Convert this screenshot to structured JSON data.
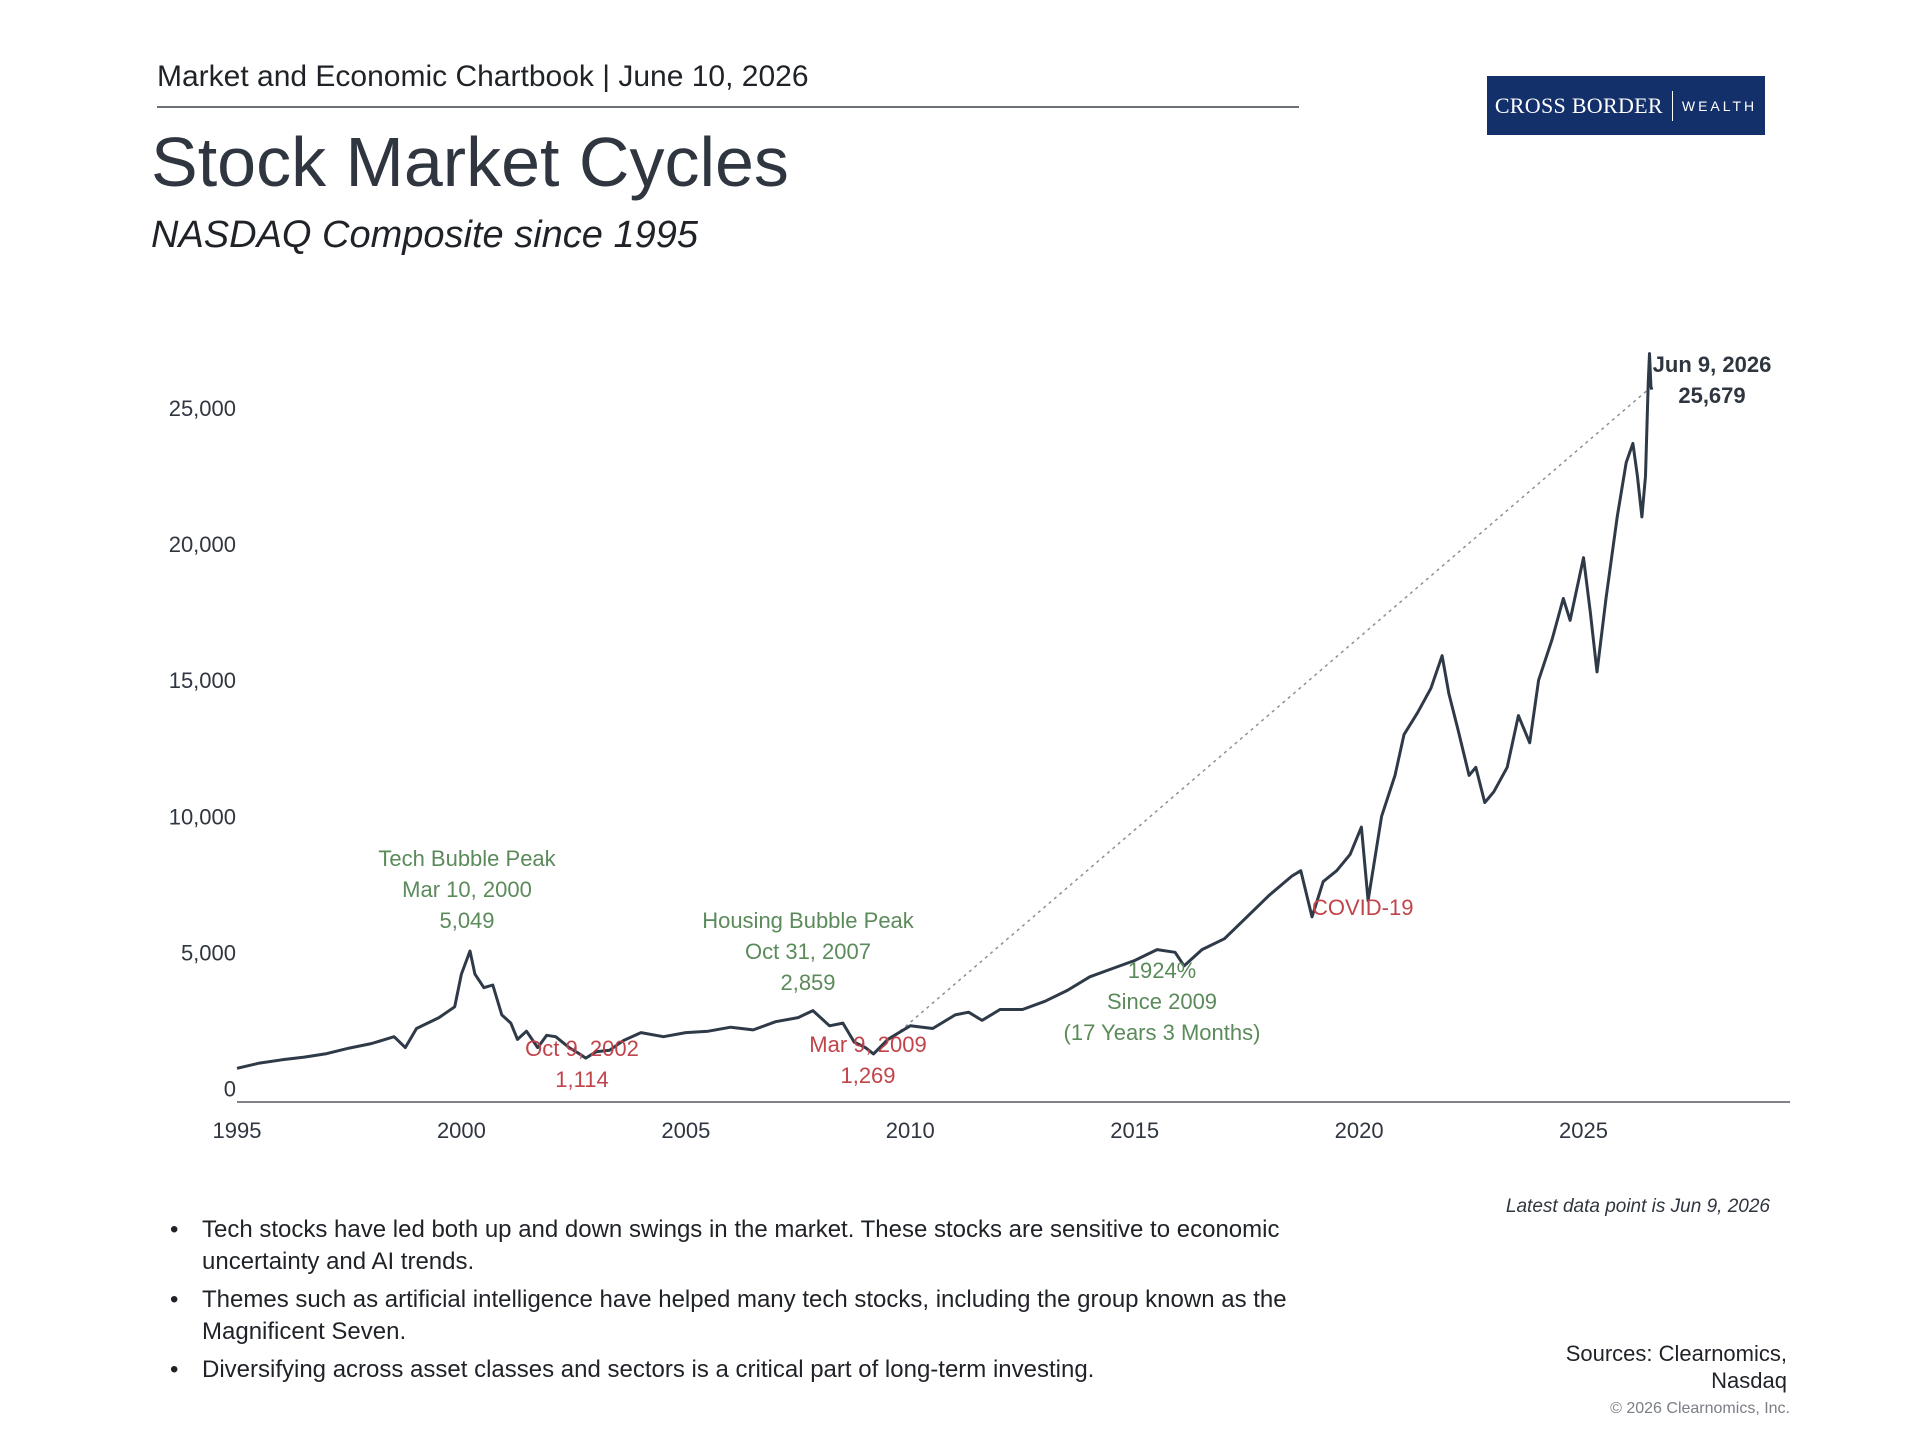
{
  "header": {
    "chartbook_label": "Market and Economic Chartbook | June 10, 2026",
    "logo_main": "CROSS BORDER",
    "logo_sub": "WEALTH"
  },
  "title": "Stock Market Cycles",
  "subtitle": "NASDAQ Composite since 1995",
  "colors": {
    "line": "#2f3a48",
    "peak_annotation": "#5b8a5b",
    "trough_annotation": "#c0444a",
    "axis_text": "#2f3640",
    "logo_background": "#13306a"
  },
  "chart_data": {
    "type": "line",
    "title": "Stock Market Cycles",
    "subtitle": "NASDAQ Composite since 1995",
    "xlabel": "",
    "ylabel": "",
    "xlim": [
      1995,
      2029.6
    ],
    "ylim": [
      -500,
      27500
    ],
    "x_ticks": [
      1995,
      2000,
      2005,
      2010,
      2015,
      2020,
      2025
    ],
    "y_ticks": [
      0,
      5000,
      10000,
      15000,
      20000,
      25000
    ],
    "y_tick_labels": [
      "0",
      "5,000",
      "10,000",
      "15,000",
      "20,000",
      "25,000"
    ],
    "grid": false,
    "legend": "none",
    "series": [
      {
        "points": [
          [
            1995.0,
            740
          ],
          [
            1995.5,
            930
          ],
          [
            1996.0,
            1050
          ],
          [
            1996.5,
            1150
          ],
          [
            1997.0,
            1280
          ],
          [
            1997.5,
            1480
          ],
          [
            1998.0,
            1650
          ],
          [
            1998.5,
            1900
          ],
          [
            1998.75,
            1500
          ],
          [
            1999.0,
            2200
          ],
          [
            1999.5,
            2600
          ],
          [
            1999.85,
            3000
          ],
          [
            2000.0,
            4200
          ],
          [
            2000.19,
            5049
          ],
          [
            2000.3,
            4200
          ],
          [
            2000.5,
            3700
          ],
          [
            2000.7,
            3800
          ],
          [
            2000.9,
            2700
          ],
          [
            2001.1,
            2400
          ],
          [
            2001.25,
            1800
          ],
          [
            2001.45,
            2100
          ],
          [
            2001.7,
            1500
          ],
          [
            2001.9,
            1950
          ],
          [
            2002.1,
            1900
          ],
          [
            2002.4,
            1500
          ],
          [
            2002.6,
            1300
          ],
          [
            2002.77,
            1114
          ],
          [
            2003.0,
            1350
          ],
          [
            2003.3,
            1400
          ],
          [
            2003.6,
            1750
          ],
          [
            2004.0,
            2050
          ],
          [
            2004.5,
            1900
          ],
          [
            2005.0,
            2050
          ],
          [
            2005.5,
            2100
          ],
          [
            2006.0,
            2250
          ],
          [
            2006.5,
            2150
          ],
          [
            2007.0,
            2450
          ],
          [
            2007.5,
            2600
          ],
          [
            2007.83,
            2859
          ],
          [
            2008.2,
            2300
          ],
          [
            2008.5,
            2400
          ],
          [
            2008.75,
            1700
          ],
          [
            2009.0,
            1500
          ],
          [
            2009.18,
            1269
          ],
          [
            2009.5,
            1800
          ],
          [
            2010.0,
            2300
          ],
          [
            2010.5,
            2200
          ],
          [
            2011.0,
            2700
          ],
          [
            2011.3,
            2800
          ],
          [
            2011.6,
            2500
          ],
          [
            2012.0,
            2900
          ],
          [
            2012.5,
            2900
          ],
          [
            2013.0,
            3200
          ],
          [
            2013.5,
            3600
          ],
          [
            2014.0,
            4100
          ],
          [
            2014.5,
            4400
          ],
          [
            2015.0,
            4700
          ],
          [
            2015.5,
            5100
          ],
          [
            2015.9,
            5000
          ],
          [
            2016.1,
            4500
          ],
          [
            2016.5,
            5100
          ],
          [
            2017.0,
            5500
          ],
          [
            2017.5,
            6300
          ],
          [
            2018.0,
            7100
          ],
          [
            2018.5,
            7800
          ],
          [
            2018.7,
            8000
          ],
          [
            2018.95,
            6300
          ],
          [
            2019.2,
            7600
          ],
          [
            2019.5,
            8000
          ],
          [
            2019.8,
            8600
          ],
          [
            2020.05,
            9600
          ],
          [
            2020.2,
            6900
          ],
          [
            2020.5,
            10000
          ],
          [
            2020.8,
            11500
          ],
          [
            2021.0,
            13000
          ],
          [
            2021.3,
            13800
          ],
          [
            2021.6,
            14700
          ],
          [
            2021.85,
            15900
          ],
          [
            2022.0,
            14500
          ],
          [
            2022.2,
            13200
          ],
          [
            2022.45,
            11500
          ],
          [
            2022.6,
            11800
          ],
          [
            2022.8,
            10500
          ],
          [
            2023.0,
            10900
          ],
          [
            2023.3,
            11800
          ],
          [
            2023.55,
            13700
          ],
          [
            2023.8,
            12700
          ],
          [
            2024.0,
            15000
          ],
          [
            2024.3,
            16500
          ],
          [
            2024.55,
            18000
          ],
          [
            2024.7,
            17200
          ],
          [
            2025.0,
            19500
          ],
          [
            2025.15,
            17500
          ],
          [
            2025.3,
            15300
          ],
          [
            2025.5,
            18000
          ],
          [
            2025.75,
            21000
          ],
          [
            2025.95,
            23000
          ],
          [
            2026.1,
            23700
          ],
          [
            2026.2,
            22500
          ],
          [
            2026.3,
            21000
          ],
          [
            2026.38,
            22500
          ],
          [
            2026.44,
            25900
          ],
          [
            2026.47,
            27000
          ],
          [
            2026.5,
            25800
          ],
          [
            2026.52,
            25679
          ]
        ]
      }
    ],
    "annotations": [
      {
        "kind": "peak",
        "x": 2000.19,
        "y": 5049,
        "lines": [
          "Tech Bubble Peak",
          "Mar 10, 2000",
          "5,049"
        ]
      },
      {
        "kind": "trough",
        "x": 2002.77,
        "y": 1114,
        "lines": [
          "Oct 9, 2002",
          "1,114"
        ]
      },
      {
        "kind": "peak",
        "x": 2007.83,
        "y": 2859,
        "lines": [
          "Housing Bubble Peak",
          "Oct 31, 2007",
          "2,859"
        ]
      },
      {
        "kind": "trough",
        "x": 2009.18,
        "y": 1269,
        "lines": [
          "Mar 9, 2009",
          "1,269"
        ]
      },
      {
        "kind": "gain",
        "lines": [
          "1924%",
          "Since 2009",
          "(17 Years 3 Months)"
        ]
      },
      {
        "kind": "event",
        "x": 2020.2,
        "y": 6900,
        "lines": [
          "COVID-19"
        ]
      },
      {
        "kind": "latest",
        "x": 2026.44,
        "y": 25679,
        "lines": [
          "Jun 9, 2026",
          "25,679"
        ]
      }
    ],
    "trend_line": {
      "from": [
        2009.18,
        1269
      ],
      "to": [
        2026.44,
        25679
      ],
      "style": "dotted"
    }
  },
  "bullets": [
    "Tech stocks have led both up and down swings in the market. These stocks are sensitive to economic uncertainty and AI trends.",
    "Themes such as artificial intelligence have helped many tech stocks, including the group known as the Magnificent Seven.",
    "Diversifying across asset classes and sectors is a critical part of long-term investing."
  ],
  "footer": {
    "latest_note": "Latest data point is Jun 9, 2026",
    "sources_line1": "Sources: Clearnomics,",
    "sources_line2": "Nasdaq",
    "copyright": "© 2026 Clearnomics, Inc."
  }
}
